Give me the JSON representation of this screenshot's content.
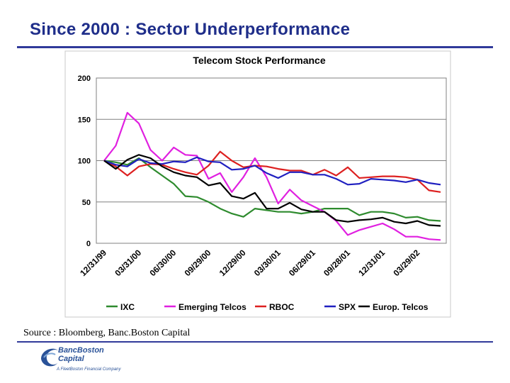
{
  "slide": {
    "title": "Since 2000 : Sector Underperformance",
    "source": "Source : Bloomberg, Banc.Boston Capital"
  },
  "logo": {
    "line1": "BancBoston",
    "line2": "Capital",
    "tagline": "A FleetBoston Financial Company",
    "icon": "swoosh-logo-icon",
    "color": "#2a5298"
  },
  "colors": {
    "title": "#1f2e8a",
    "rule": "#303a9a"
  },
  "chart_data": {
    "type": "line",
    "title": "Telecom Stock Performance",
    "xlabel": "",
    "ylabel": "",
    "ylim": [
      0,
      200
    ],
    "yticks": [
      0,
      50,
      100,
      150,
      200
    ],
    "xtick_labels": [
      "12/31/99",
      "03/31/00",
      "06/30/00",
      "09/29/00",
      "12/29/00",
      "03/30/01",
      "06/29/01",
      "09/28/01",
      "12/31/01",
      "03/29/02"
    ],
    "grid": "horizontal",
    "legend_position": "bottom",
    "x": [
      "12/31/99",
      "01/31/00",
      "02/29/00",
      "03/31/00",
      "04/28/00",
      "05/31/00",
      "06/30/00",
      "07/31/00",
      "08/31/00",
      "09/29/00",
      "10/31/00",
      "11/30/00",
      "12/29/00",
      "01/31/01",
      "02/28/01",
      "03/30/01",
      "04/30/01",
      "05/31/01",
      "06/29/01",
      "07/31/01",
      "08/31/01",
      "09/28/01",
      "10/31/01",
      "11/30/01",
      "12/31/01",
      "01/31/02",
      "02/28/02",
      "03/29/02",
      "04/30/02",
      "05/31/02"
    ],
    "series": [
      {
        "name": "IXC",
        "color": "#2e8b2e",
        "values": [
          100,
          98,
          95,
          103,
          92,
          82,
          72,
          57,
          56,
          50,
          42,
          36,
          32,
          42,
          40,
          38,
          38,
          36,
          38,
          42,
          42,
          42,
          34,
          38,
          38,
          36,
          31,
          32,
          28,
          27
        ]
      },
      {
        "name": "Emerging Telcos",
        "color": "#e020e0",
        "values": [
          100,
          118,
          158,
          145,
          113,
          100,
          116,
          107,
          106,
          78,
          85,
          62,
          80,
          103,
          80,
          48,
          65,
          52,
          45,
          38,
          27,
          10,
          16,
          20,
          24,
          17,
          8,
          8,
          5,
          4
        ]
      },
      {
        "name": "RBOC",
        "color": "#dd2020",
        "values": [
          100,
          93,
          82,
          93,
          96,
          95,
          90,
          86,
          83,
          94,
          111,
          100,
          92,
          94,
          93,
          90,
          88,
          88,
          83,
          89,
          82,
          92,
          79,
          80,
          81,
          81,
          80,
          77,
          64,
          62
        ]
      },
      {
        "name": "SPX",
        "color": "#2020c0",
        "values": [
          100,
          95,
          93,
          102,
          97,
          96,
          99,
          98,
          104,
          99,
          98,
          89,
          90,
          94,
          85,
          79,
          86,
          86,
          83,
          83,
          78,
          71,
          72,
          78,
          77,
          76,
          74,
          77,
          73,
          71
        ]
      },
      {
        "name": "Europ. Telcos",
        "color": "#000000",
        "values": [
          100,
          90,
          101,
          107,
          103,
          93,
          86,
          82,
          80,
          70,
          73,
          57,
          54,
          61,
          42,
          42,
          49,
          41,
          38,
          38,
          28,
          26,
          28,
          29,
          31,
          26,
          24,
          27,
          22,
          21
        ]
      }
    ]
  }
}
